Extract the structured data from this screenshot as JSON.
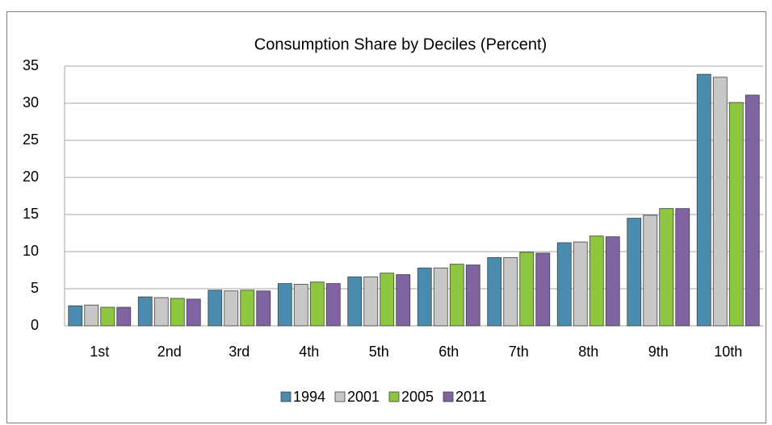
{
  "chart_data": {
    "type": "bar",
    "title": "Consumption Share by Deciles (Percent)",
    "categories": [
      "1st",
      "2nd",
      "3rd",
      "4th",
      "5th",
      "6th",
      "7th",
      "8th",
      "9th",
      "10th"
    ],
    "series": [
      {
        "name": "1994",
        "color": "#4a8bae",
        "values": [
          2.7,
          3.9,
          4.8,
          5.7,
          6.6,
          7.8,
          9.2,
          11.2,
          14.5,
          33.9
        ]
      },
      {
        "name": "2001",
        "color": "#c8c8c8",
        "values": [
          2.8,
          3.8,
          4.7,
          5.6,
          6.6,
          7.8,
          9.2,
          11.3,
          14.9,
          33.5
        ]
      },
      {
        "name": "2005",
        "color": "#8dc63f",
        "values": [
          2.5,
          3.7,
          4.8,
          5.9,
          7.1,
          8.3,
          9.9,
          12.1,
          15.8,
          30.1
        ]
      },
      {
        "name": "2011",
        "color": "#8064a2",
        "values": [
          2.5,
          3.6,
          4.7,
          5.7,
          6.9,
          8.2,
          9.8,
          12.0,
          15.8,
          31.1
        ]
      }
    ],
    "ylim": [
      0,
      35
    ],
    "yticks": [
      0,
      5,
      10,
      15,
      20,
      25,
      30,
      35
    ],
    "grid": true
  }
}
